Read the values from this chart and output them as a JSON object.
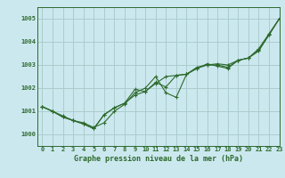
{
  "title": "Graphe pression niveau de la mer (hPa)",
  "bg_color": "#cce8ef",
  "grid_color": "#aacccc",
  "line_color": "#2d6a2d",
  "marker_color": "#2d6a2d",
  "xlim": [
    -0.5,
    23
  ],
  "ylim": [
    999.5,
    1005.5
  ],
  "yticks": [
    1000,
    1001,
    1002,
    1003,
    1004,
    1005
  ],
  "xticks": [
    0,
    1,
    2,
    3,
    4,
    5,
    6,
    7,
    8,
    9,
    10,
    11,
    12,
    13,
    14,
    15,
    16,
    17,
    18,
    19,
    20,
    21,
    22,
    23
  ],
  "series1": [
    1001.2,
    1001.0,
    1000.75,
    1000.6,
    1000.45,
    1000.25,
    1000.85,
    1001.15,
    1001.35,
    1001.7,
    1001.85,
    1002.2,
    1002.5,
    1002.55,
    1002.6,
    1002.85,
    1003.0,
    1003.05,
    1003.0,
    1003.2,
    1003.3,
    1003.65,
    1004.3,
    1005.0
  ],
  "series2": [
    1001.2,
    1001.0,
    1000.75,
    1000.6,
    1000.45,
    1000.25,
    1000.85,
    1001.15,
    1001.35,
    1001.95,
    1001.85,
    1002.25,
    1002.05,
    1002.55,
    1002.6,
    1002.85,
    1003.05,
    1002.95,
    1002.85,
    1003.2,
    1003.3,
    1003.7,
    1004.35,
    1005.0
  ],
  "series3": [
    1001.2,
    1001.0,
    1000.8,
    1000.6,
    1000.5,
    1000.3,
    1000.5,
    1001.0,
    1001.3,
    1001.8,
    1002.0,
    1002.5,
    1001.8,
    1001.6,
    1002.6,
    1002.9,
    1003.0,
    1003.0,
    1002.9,
    1003.2,
    1003.3,
    1003.6,
    1004.3,
    1005.0
  ],
  "title_fontsize": 6,
  "tick_fontsize": 5
}
